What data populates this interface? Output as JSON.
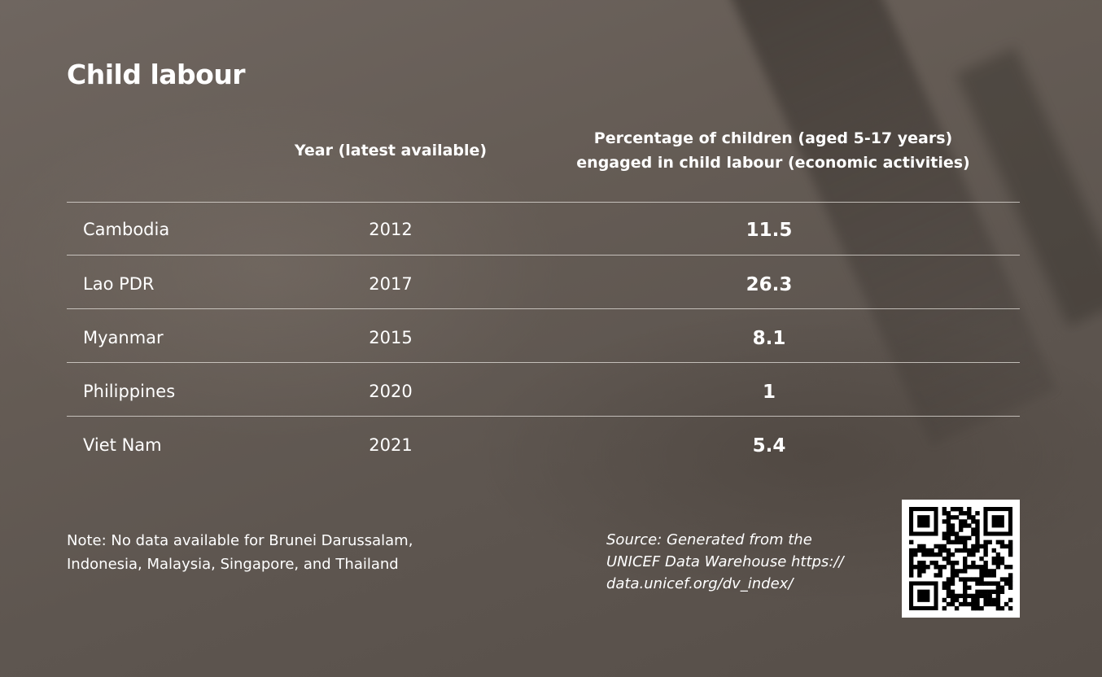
{
  "title": "Child labour",
  "table": {
    "col_year": "Year (latest available)",
    "col_pct_line1": "Percentage of children (aged 5-17 years)",
    "col_pct_line2": "engaged in child labour (economic activities)",
    "rows": [
      {
        "country": "Cambodia",
        "year": "2012",
        "value": "11.5"
      },
      {
        "country": "Lao PDR",
        "year": "2017",
        "value": "26.3"
      },
      {
        "country": "Myanmar",
        "year": "2015",
        "value": "8.1"
      },
      {
        "country": "Philippines",
        "year": "2020",
        "value": "1"
      },
      {
        "country": "Viet Nam",
        "year": "2021",
        "value": "5.4"
      }
    ]
  },
  "note_line1": "Note: No data available for Brunei Darussalam,",
  "note_line2": "Indonesia, Malaysia, Singapore, and Thailand",
  "source_line1": "Source: Generated from the",
  "source_line2": "UNICEF Data Warehouse https://",
  "source_line3": "data.unicef.org/dv_index/",
  "chart_data": {
    "type": "table",
    "title": "Child labour",
    "columns": [
      "",
      "Year (latest available)",
      "Percentage of children (aged 5-17 years) engaged in child labour (economic activities)"
    ],
    "rows": [
      [
        "Cambodia",
        2012,
        11.5
      ],
      [
        "Lao PDR",
        2017,
        26.3
      ],
      [
        "Myanmar",
        2015,
        8.1
      ],
      [
        "Philippines",
        2020,
        1
      ],
      [
        "Viet Nam",
        2021,
        5.4
      ]
    ]
  }
}
